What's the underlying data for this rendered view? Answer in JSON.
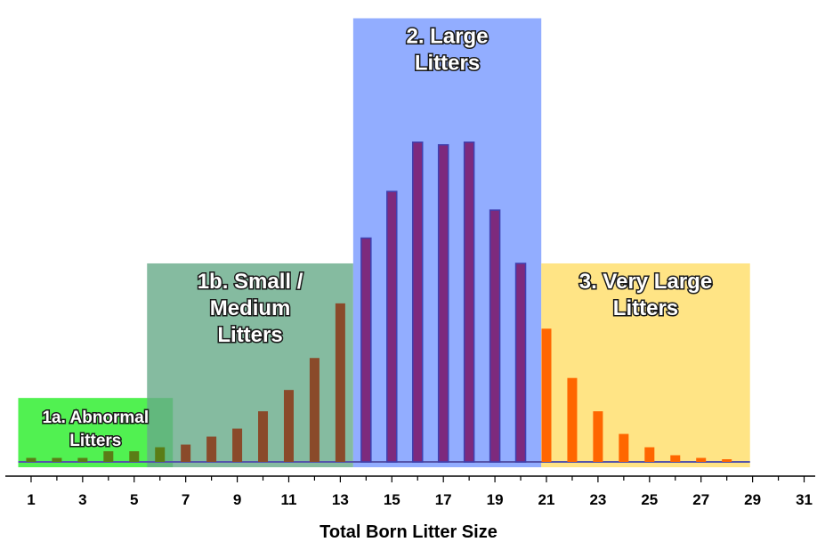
{
  "chart_data": {
    "type": "bar",
    "xlabel": "Total Born Litter Size",
    "ylabel": "",
    "x": [
      1,
      2,
      3,
      4,
      5,
      6,
      7,
      8,
      9,
      10,
      11,
      12,
      13,
      14,
      15,
      16,
      17,
      18,
      19,
      20,
      21,
      22,
      23,
      24,
      25,
      26,
      27,
      28
    ],
    "values": [
      3,
      3,
      3,
      8,
      8,
      11,
      13,
      19,
      25,
      38,
      54,
      78,
      119,
      168,
      203,
      240,
      238,
      240,
      189,
      149,
      100,
      63,
      38,
      21,
      11,
      5,
      3,
      2
    ],
    "xlim": [
      0,
      31.5
    ],
    "ylim": [
      0,
      320
    ],
    "xticks": [
      1,
      3,
      5,
      7,
      9,
      11,
      13,
      15,
      17,
      19,
      21,
      23,
      25,
      27,
      29,
      31
    ],
    "colors": {
      "abnormal_bar": "#5a7d16",
      "small_bar": "#8a4a2a",
      "large_bar": "#7d2a7d",
      "very_large_bar": "#ff6600",
      "bar_edge": "#4040b0"
    },
    "regions": [
      {
        "id": "abnormal",
        "lines": [
          "1a. Abnormal",
          "Litters"
        ],
        "x_from": 0.5,
        "x_to": 6.5,
        "height": 48,
        "color": "#33ee33"
      },
      {
        "id": "small",
        "lines": [
          "1b. Small /",
          "Medium",
          "Litters"
        ],
        "x_from": 5.5,
        "x_to": 13.5,
        "height": 149,
        "color": "#66aa88"
      },
      {
        "id": "large",
        "lines": [
          "2. Large",
          "Litters"
        ],
        "x_from": 13.5,
        "x_to": 20.8,
        "height": 333,
        "color": "#7799ff"
      },
      {
        "id": "verylarge",
        "lines": [
          "3. Very Large",
          "Litters"
        ],
        "x_from": 20.8,
        "x_to": 28.9,
        "height": 149,
        "color": "#ffdd66"
      }
    ]
  }
}
